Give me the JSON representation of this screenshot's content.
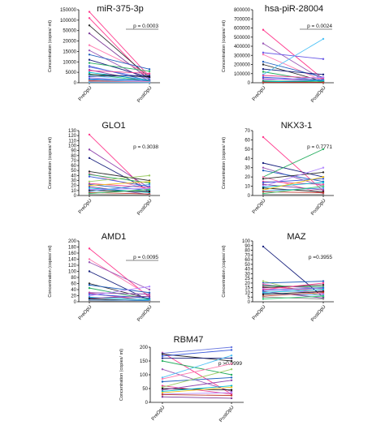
{
  "chart_data": [
    {
      "type": "line",
      "title": "miR-375-3p",
      "p_value": "p = 0.0003",
      "p_underlined": true,
      "ylabel": "Concentration (copies/ ml)",
      "categories": [
        "PreOpU",
        "PostOpU"
      ],
      "yticks": [
        "0",
        "5000",
        "10000",
        "15000",
        "20000",
        "50000",
        "100000",
        "150000"
      ],
      "ylim": [
        0,
        150000
      ],
      "pairs": [
        [
          140000,
          3000,
          "#ff3b8e"
        ],
        [
          110000,
          1200,
          "#ff3b8e"
        ],
        [
          75000,
          2500,
          "#2a2a2a"
        ],
        [
          42000,
          1500,
          "#7d3c98"
        ],
        [
          18000,
          4000,
          "#ff7ab0"
        ],
        [
          15500,
          800,
          "#9b59b6"
        ],
        [
          13500,
          6500,
          "#1f5fbf"
        ],
        [
          11000,
          2500,
          "#1a237e"
        ],
        [
          9500,
          5500,
          "#27ae60"
        ],
        [
          8000,
          900,
          "#3b5bdb"
        ],
        [
          7500,
          2000,
          "#6c7ae0"
        ],
        [
          6200,
          300,
          "#8e44ad"
        ],
        [
          5800,
          4500,
          "#e84393"
        ],
        [
          5000,
          1200,
          "#00bcd4"
        ],
        [
          4200,
          700,
          "#2ecc71"
        ],
        [
          3900,
          2900,
          "#111111"
        ],
        [
          3500,
          400,
          "#7fd3ff"
        ],
        [
          3000,
          3500,
          "#2c3e8f"
        ],
        [
          2400,
          600,
          "#b388ff"
        ],
        [
          1800,
          1100,
          "#1565c0"
        ],
        [
          1500,
          300,
          "#4a90e2"
        ],
        [
          1000,
          200,
          "#c0392b"
        ],
        [
          600,
          500,
          "#f48fb1"
        ],
        [
          400,
          150,
          "#888888"
        ],
        [
          250,
          100,
          "#5dade2"
        ]
      ]
    },
    {
      "type": "line",
      "title": "hsa-piR-28004",
      "p_value": "p = 0.0024",
      "p_underlined": true,
      "ylabel": "Concentration (copies/ ml)",
      "categories": [
        "PreOpU",
        "PostOpU"
      ],
      "yticks": [
        "0",
        "100000",
        "200000",
        "300000",
        "400000",
        "500000",
        "600000",
        "700000",
        "800000"
      ],
      "ylim": [
        0,
        800000
      ],
      "pairs": [
        [
          580000,
          40000,
          "#ff3b8e"
        ],
        [
          430000,
          30000,
          "#9b59b6"
        ],
        [
          330000,
          260000,
          "#6c5ce7"
        ],
        [
          310000,
          20000,
          "#ff7ab0"
        ],
        [
          230000,
          60000,
          "#1f5fbf"
        ],
        [
          200000,
          15000,
          "#2a2a2a"
        ],
        [
          150000,
          90000,
          "#1a237e"
        ],
        [
          120000,
          10000,
          "#27ae60"
        ],
        [
          90000,
          480000,
          "#4fc3f7"
        ],
        [
          80000,
          50000,
          "#e84393"
        ],
        [
          60000,
          30000,
          "#3b5bdb"
        ],
        [
          45000,
          20000,
          "#8e44ad"
        ],
        [
          30000,
          60000,
          "#b388ff"
        ],
        [
          20000,
          10000,
          "#2ecc71"
        ],
        [
          12000,
          5000,
          "#111111"
        ],
        [
          8000,
          25000,
          "#00bcd4"
        ],
        [
          5000,
          3000,
          "#c0392b"
        ]
      ]
    },
    {
      "type": "line",
      "title": "GLO1",
      "p_value": "p = 0.3038",
      "p_underlined": false,
      "ylabel": "Concentration (copies/ ml)",
      "categories": [
        "PreOpU",
        "PostOpU"
      ],
      "yticks": [
        "0",
        "10",
        "20",
        "30",
        "40",
        "50",
        "60",
        "70",
        "80",
        "90",
        "100",
        "110",
        "120",
        "130"
      ],
      "ylim": [
        0,
        130
      ],
      "pairs": [
        [
          122,
          4,
          "#ff3b8e"
        ],
        [
          92,
          15,
          "#8e44ad"
        ],
        [
          75,
          10,
          "#1a237e"
        ],
        [
          48,
          30,
          "#2a2a2a"
        ],
        [
          44,
          12,
          "#ff7ab0"
        ],
        [
          42,
          25,
          "#27ae60"
        ],
        [
          38,
          18,
          "#3b5bdb"
        ],
        [
          28,
          40,
          "#9ccc65"
        ],
        [
          24,
          16,
          "#e84393"
        ],
        [
          22,
          10,
          "#1f5fbf"
        ],
        [
          20,
          28,
          "#f0c419"
        ],
        [
          18,
          2,
          "#7d3c98"
        ],
        [
          15,
          6,
          "#00bcd4"
        ],
        [
          12,
          14,
          "#b388ff"
        ],
        [
          10,
          8,
          "#111111"
        ],
        [
          8,
          22,
          "#4a90e2"
        ],
        [
          6,
          3,
          "#c0392b"
        ],
        [
          4,
          12,
          "#2ecc71"
        ],
        [
          2,
          1,
          "#888888"
        ]
      ]
    },
    {
      "type": "line",
      "title": "NKX3-1",
      "p_value": "p = 0.7771",
      "p_underlined": false,
      "ylabel": "Concentration (copies/ ml)",
      "categories": [
        "PreOpU",
        "PostOpU"
      ],
      "yticks": [
        "0",
        "10",
        "20",
        "30",
        "40",
        "50",
        "60",
        "70"
      ],
      "ylim": [
        0,
        70
      ],
      "pairs": [
        [
          63,
          5,
          "#ff3b8e"
        ],
        [
          35,
          20,
          "#1a237e"
        ],
        [
          30,
          10,
          "#9b59b6"
        ],
        [
          27,
          15,
          "#1f5fbf"
        ],
        [
          20,
          50,
          "#27ae60"
        ],
        [
          20,
          2,
          "#ff7ab0"
        ],
        [
          18,
          25,
          "#2a2a2a"
        ],
        [
          15,
          12,
          "#e84393"
        ],
        [
          14,
          18,
          "#3b5bdb"
        ],
        [
          12,
          6,
          "#7d3c98"
        ],
        [
          10,
          30,
          "#b388ff"
        ],
        [
          9,
          14,
          "#00bcd4"
        ],
        [
          8,
          4,
          "#111111"
        ],
        [
          6,
          20,
          "#f0c419"
        ],
        [
          5,
          8,
          "#4a90e2"
        ],
        [
          4,
          3,
          "#c0392b"
        ],
        [
          2,
          10,
          "#2ecc71"
        ],
        [
          1,
          1,
          "#888888"
        ]
      ]
    },
    {
      "type": "line",
      "title": "AMD1",
      "p_value": "p = 0.0095",
      "p_underlined": true,
      "ylabel": "Concentration (copies/ ml)",
      "categories": [
        "PreOpU",
        "PostOpU"
      ],
      "yticks": [
        "0",
        "20",
        "40",
        "60",
        "80",
        "100",
        "120",
        "140",
        "160",
        "180",
        "200"
      ],
      "ylim": [
        0,
        200
      ],
      "pairs": [
        [
          175,
          15,
          "#ff3b8e"
        ],
        [
          140,
          20,
          "#ff7ab0"
        ],
        [
          130,
          40,
          "#9b59b6"
        ],
        [
          100,
          5,
          "#1a237e"
        ],
        [
          60,
          10,
          "#2a2a2a"
        ],
        [
          55,
          30,
          "#1f5fbf"
        ],
        [
          45,
          8,
          "#27ae60"
        ],
        [
          30,
          25,
          "#8e44ad"
        ],
        [
          28,
          3,
          "#e84393"
        ],
        [
          25,
          12,
          "#3b5bdb"
        ],
        [
          20,
          50,
          "#b388ff"
        ],
        [
          15,
          6,
          "#00bcd4"
        ],
        [
          12,
          18,
          "#7d3c98"
        ],
        [
          10,
          2,
          "#111111"
        ],
        [
          6,
          4,
          "#4a90e2"
        ],
        [
          3,
          1,
          "#888888"
        ]
      ]
    },
    {
      "type": "line",
      "title": "MAZ",
      "p_value": "p =0.3955",
      "p_underlined": false,
      "ylabel": "Concentration (copies/ ml)",
      "categories": [
        "PreOpU",
        "PostOpU"
      ],
      "yticks": [
        "0",
        "5",
        "10",
        "15",
        "20",
        "25",
        "30",
        "40",
        "50",
        "60",
        "70",
        "80",
        "90",
        "100"
      ],
      "ylim": [
        0,
        100
      ],
      "pairs": [
        [
          88,
          5,
          "#1a237e"
        ],
        [
          22,
          6,
          "#9ccc65"
        ],
        [
          20,
          22,
          "#1f5fbf"
        ],
        [
          19,
          8,
          "#ff7ab0"
        ],
        [
          18,
          14,
          "#9b59b6"
        ],
        [
          17,
          16,
          "#27ae60"
        ],
        [
          16,
          12,
          "#e84393"
        ],
        [
          15,
          18,
          "#2a2a2a"
        ],
        [
          14,
          9,
          "#b388ff"
        ],
        [
          13,
          20,
          "#ff3b8e"
        ],
        [
          12,
          15,
          "#3b5bdb"
        ],
        [
          11,
          4,
          "#7d3c98"
        ],
        [
          10,
          13,
          "#00bcd4"
        ],
        [
          9,
          7,
          "#4a90e2"
        ],
        [
          8,
          11,
          "#111111"
        ],
        [
          6,
          10,
          "#c0392b"
        ],
        [
          5,
          3,
          "#888888"
        ],
        [
          3,
          6,
          "#2ecc71"
        ]
      ]
    },
    {
      "type": "line",
      "title": "RBM47",
      "p_value": "p >0.9999",
      "p_underlined": false,
      "ylabel": "Concentration (copies/ ml)",
      "categories": [
        "PreOpU",
        "PostOpU"
      ],
      "yticks": [
        "0",
        "50",
        "100",
        "150",
        "200"
      ],
      "ylim": [
        0,
        200
      ],
      "pairs": [
        [
          180,
          30,
          "#ff3b8e"
        ],
        [
          178,
          200,
          "#6c7ae0"
        ],
        [
          175,
          150,
          "#2a2a2a"
        ],
        [
          168,
          190,
          "#3b5bdb"
        ],
        [
          160,
          160,
          "#1a237e"
        ],
        [
          150,
          100,
          "#27ae60"
        ],
        [
          120,
          40,
          "#9b59b6"
        ],
        [
          90,
          170,
          "#4fc3f7"
        ],
        [
          85,
          140,
          "#ff7ab0"
        ],
        [
          75,
          90,
          "#1f5fbf"
        ],
        [
          60,
          30,
          "#e84393"
        ],
        [
          55,
          120,
          "#9ccc65"
        ],
        [
          50,
          45,
          "#111111"
        ],
        [
          45,
          80,
          "#8e44ad"
        ],
        [
          40,
          60,
          "#00bcd4"
        ],
        [
          35,
          55,
          "#f0c419"
        ],
        [
          30,
          35,
          "#b388ff"
        ],
        [
          28,
          25,
          "#c0392b"
        ],
        [
          20,
          15,
          "#7d3c98"
        ]
      ]
    }
  ]
}
